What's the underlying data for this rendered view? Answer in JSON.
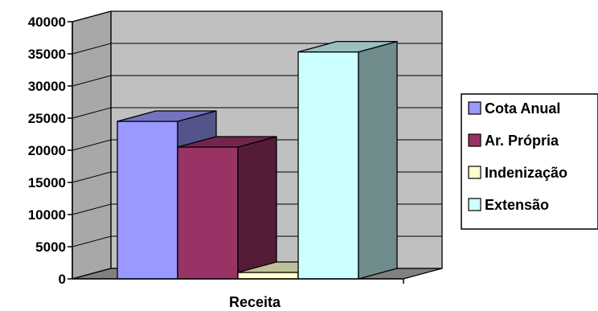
{
  "chart_data": {
    "type": "bar",
    "style": "3d-clustered-column",
    "xlabel": "Receita",
    "ylabel": "",
    "categories": [
      "Receita"
    ],
    "ylim": [
      0,
      40000
    ],
    "yticks": [
      0,
      5000,
      10000,
      15000,
      20000,
      25000,
      30000,
      35000,
      40000
    ],
    "ytick_labels": [
      "0",
      "5000",
      "10000",
      "15000",
      "20000",
      "25000",
      "30000",
      "35000",
      "40000"
    ],
    "grid": true,
    "legend_position": "right",
    "series": [
      {
        "name": "Cota Anual",
        "values": [
          24500
        ],
        "color": "#9999FF"
      },
      {
        "name": "Ar. Própria",
        "values": [
          20500
        ],
        "color": "#993366"
      },
      {
        "name": "Indenização",
        "values": [
          1000
        ],
        "color": "#FFFFCC"
      },
      {
        "name": "Extensão",
        "values": [
          35300
        ],
        "color": "#CCFFFF"
      }
    ]
  }
}
